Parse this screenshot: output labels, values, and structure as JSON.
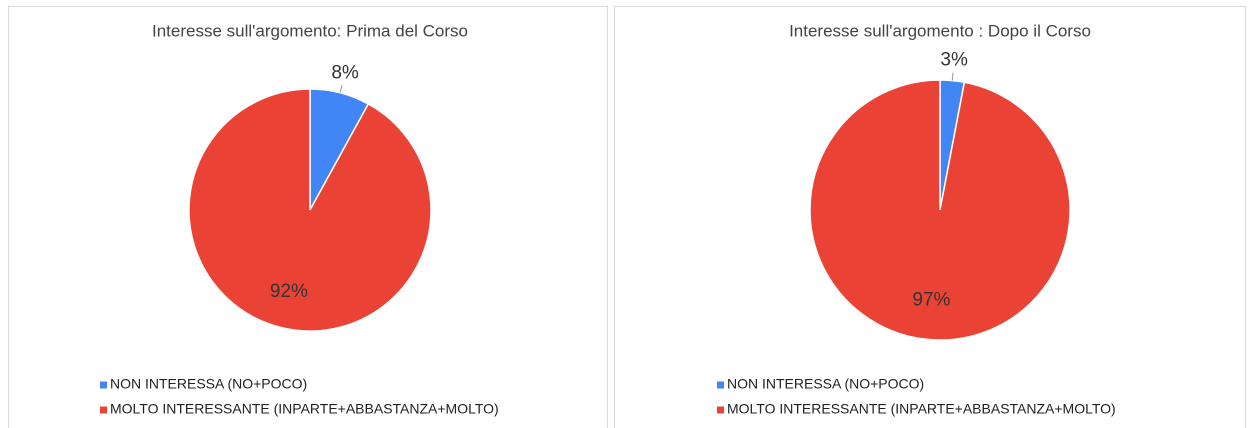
{
  "chart_data": [
    {
      "type": "pie",
      "title": "Interesse sull'argomento: Prima del Corso",
      "categories": [
        "NON INTERESSA (NO+POCO)",
        "MOLTO INTERESSANTE (INPARTE+ABBASTANZA+MOLTO)"
      ],
      "values": [
        8,
        92
      ],
      "value_labels": [
        "8%",
        "92%"
      ],
      "colors": [
        "#4285f4",
        "#ea4335"
      ]
    },
    {
      "type": "pie",
      "title": "Interesse sull'argomento : Dopo il Corso",
      "categories": [
        "NON INTERESSA (NO+POCO)",
        "MOLTO INTERESSANTE (INPARTE+ABBASTANZA+MOLTO)"
      ],
      "values": [
        3,
        97
      ],
      "value_labels": [
        "3%",
        "97%"
      ],
      "colors": [
        "#4285f4",
        "#ea4335"
      ]
    }
  ]
}
